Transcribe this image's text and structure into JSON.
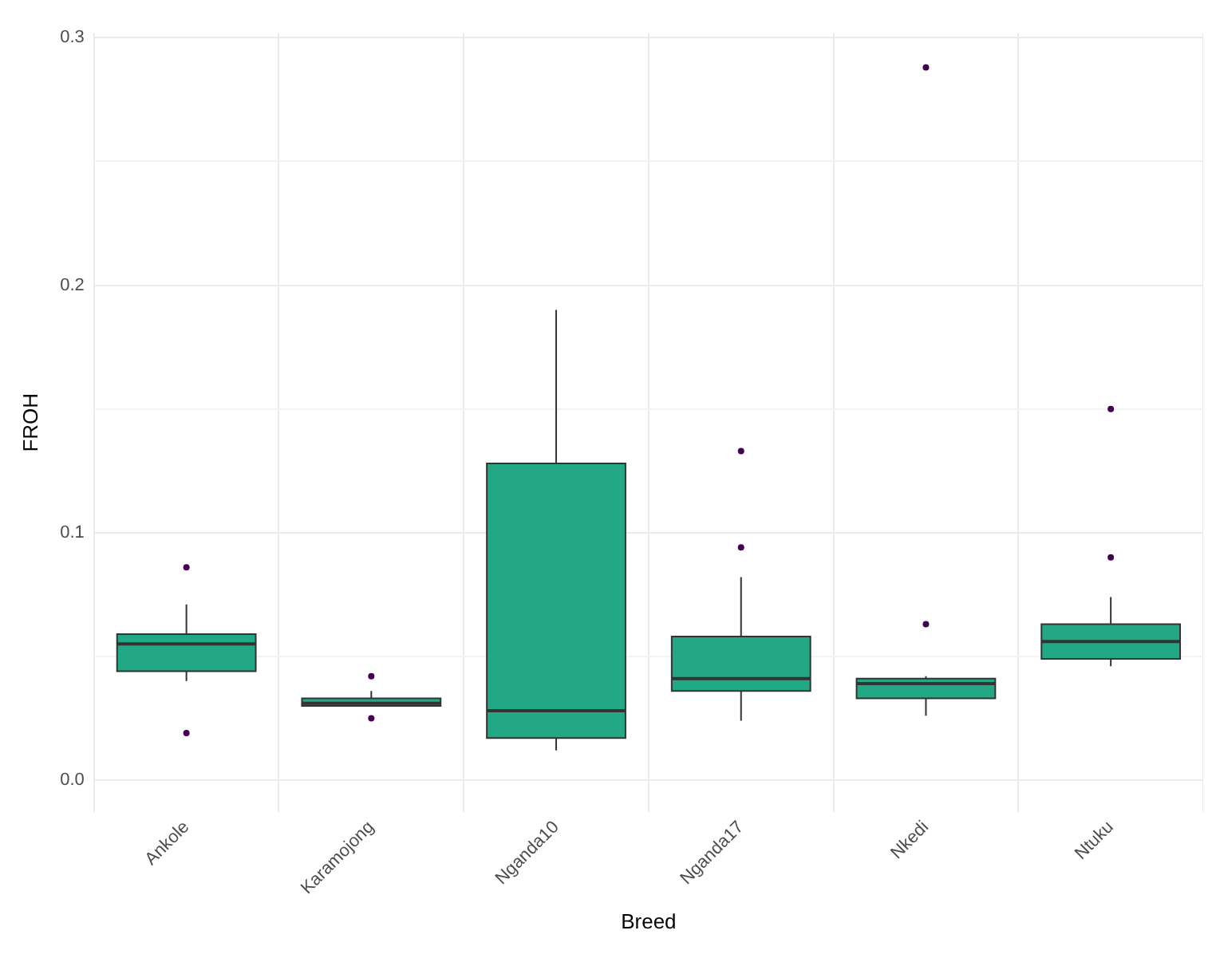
{
  "chart_data": {
    "type": "box",
    "xlabel": "Breed",
    "ylabel": "FROH",
    "categories": [
      "Ankole",
      "Karamojong",
      "Nganda10",
      "Nganda17",
      "Nkedi",
      "Ntuku"
    ],
    "boxes": [
      {
        "low": 0.04,
        "q1": 0.044,
        "median": 0.055,
        "q3": 0.059,
        "high": 0.071,
        "outliers": [
          0.086,
          0.019
        ]
      },
      {
        "low": 0.03,
        "q1": 0.03,
        "median": 0.031,
        "q3": 0.033,
        "high": 0.036,
        "outliers": [
          0.042,
          0.025
        ]
      },
      {
        "low": 0.012,
        "q1": 0.017,
        "median": 0.028,
        "q3": 0.128,
        "high": 0.19
      },
      {
        "low": 0.024,
        "q1": 0.036,
        "median": 0.041,
        "q3": 0.058,
        "high": 0.082,
        "outliers": [
          0.133,
          0.094
        ]
      },
      {
        "low": 0.026,
        "q1": 0.033,
        "median": 0.039,
        "q3": 0.041,
        "high": 0.042,
        "outliers": [
          0.288,
          0.063
        ]
      },
      {
        "low": 0.046,
        "q1": 0.049,
        "median": 0.056,
        "q3": 0.063,
        "high": 0.074,
        "outliers": [
          0.15,
          0.09
        ]
      }
    ],
    "color": "#22a884",
    "ylim": [
      -0.013,
      0.302
    ],
    "yticks": [
      {
        "value": 0,
        "label": "0.0"
      },
      {
        "value": 0.05,
        "label": null
      },
      {
        "value": 0.1,
        "label": "0.1"
      },
      {
        "value": 0.15,
        "label": null
      },
      {
        "value": 0.2,
        "label": "0.2"
      },
      {
        "value": 0.25,
        "label": null
      },
      {
        "value": 0.3,
        "label": "0.3"
      }
    ],
    "grid": true,
    "legend": false
  }
}
